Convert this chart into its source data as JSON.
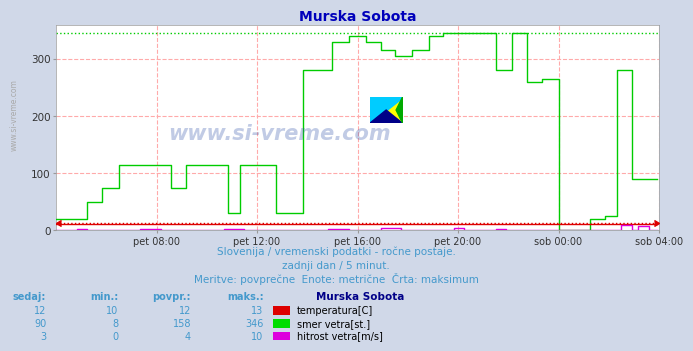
{
  "title": "Murska Sobota",
  "bg_color": "#d0d8e8",
  "plot_bg_color": "#ffffff",
  "grid_color_h": "#ffaaaa",
  "grid_color_v": "#ffaaaa",
  "text_color": "#4499cc",
  "xlim": [
    0,
    288
  ],
  "ylim": [
    0,
    360
  ],
  "yticks": [
    0,
    100,
    200,
    300
  ],
  "xtick_labels": [
    "pet 08:00",
    "pet 12:00",
    "pet 16:00",
    "pet 20:00",
    "sob 00:00",
    "sob 04:00"
  ],
  "xtick_positions": [
    48,
    96,
    144,
    192,
    240,
    288
  ],
  "subtitle1": "Slovenija / vremenski podatki - ročne postaje.",
  "subtitle2": "zadnji dan / 5 minut.",
  "subtitle3": "Meritve: povprečne  Enote: metrične  Črta: maksimum",
  "watermark": "www.si-vreme.com",
  "legend_title": "Murska Sobota",
  "legend_items": [
    {
      "label": "temperatura[C]",
      "color": "#dd0000"
    },
    {
      "label": "smer vetra[st.]",
      "color": "#00dd00"
    },
    {
      "label": "hitrost vetra[m/s]",
      "color": "#dd00dd"
    }
  ],
  "table_headers": [
    "sedaj:",
    "min.:",
    "povpr.:",
    "maks.:"
  ],
  "table_data": [
    [
      12,
      10,
      12,
      13
    ],
    [
      90,
      8,
      158,
      346
    ],
    [
      3,
      0,
      4,
      10
    ]
  ],
  "temp_color": "#dd0000",
  "wind_dir_color": "#00cc00",
  "wind_speed_color": "#dd00dd",
  "max_line_color_green": "#00cc00",
  "max_line_color_red": "#dd0000",
  "max_val_green": 346,
  "max_val_red": 13,
  "sidebar_text": "www.si-vreme.com"
}
